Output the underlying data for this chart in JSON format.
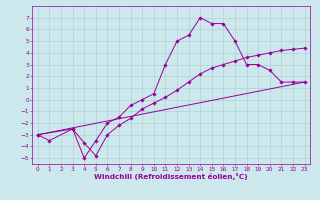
{
  "xlabel": "Windchill (Refroidissement éolien,°C)",
  "bg_color": "#cce8ec",
  "line_color": "#990099",
  "grid_color": "#aacccc",
  "line1_x": [
    0,
    1,
    3,
    4,
    5,
    6,
    7,
    8,
    9,
    10,
    11,
    12,
    13,
    14,
    15,
    16,
    17,
    18,
    19,
    20,
    21,
    22,
    23
  ],
  "line1_y": [
    -3,
    -3.5,
    -2.5,
    -5,
    -3.5,
    -2,
    -1.5,
    -0.5,
    0,
    0.5,
    3,
    5,
    5.5,
    7,
    6.5,
    6.5,
    5,
    3,
    3,
    2.5,
    1.5,
    1.5,
    1.5
  ],
  "line2_x": [
    0,
    3,
    4,
    5,
    6,
    7,
    8,
    9,
    10,
    11,
    12,
    13,
    14,
    15,
    16,
    17,
    18,
    19,
    20,
    21,
    22,
    23
  ],
  "line2_y": [
    -3,
    -2.5,
    -3.7,
    -4.8,
    -3,
    -2.2,
    -1.6,
    -0.8,
    -0.3,
    0.2,
    0.8,
    1.5,
    2.2,
    2.7,
    3.0,
    3.3,
    3.6,
    3.8,
    4.0,
    4.2,
    4.3,
    4.4
  ],
  "line3_x": [
    0,
    23
  ],
  "line3_y": [
    -3,
    1.5
  ],
  "xlim": [
    -0.5,
    23.5
  ],
  "ylim": [
    -5.5,
    8.0
  ],
  "xticks": [
    0,
    1,
    2,
    3,
    4,
    5,
    6,
    7,
    8,
    9,
    10,
    11,
    12,
    13,
    14,
    15,
    16,
    17,
    18,
    19,
    20,
    21,
    22,
    23
  ],
  "yticks": [
    -5,
    -4,
    -3,
    -2,
    -1,
    0,
    1,
    2,
    3,
    4,
    5,
    6,
    7
  ],
  "tick_fontsize": 4.2,
  "xlabel_fontsize": 5.2,
  "marker": "D",
  "markersize": 1.8,
  "linewidth": 0.7
}
